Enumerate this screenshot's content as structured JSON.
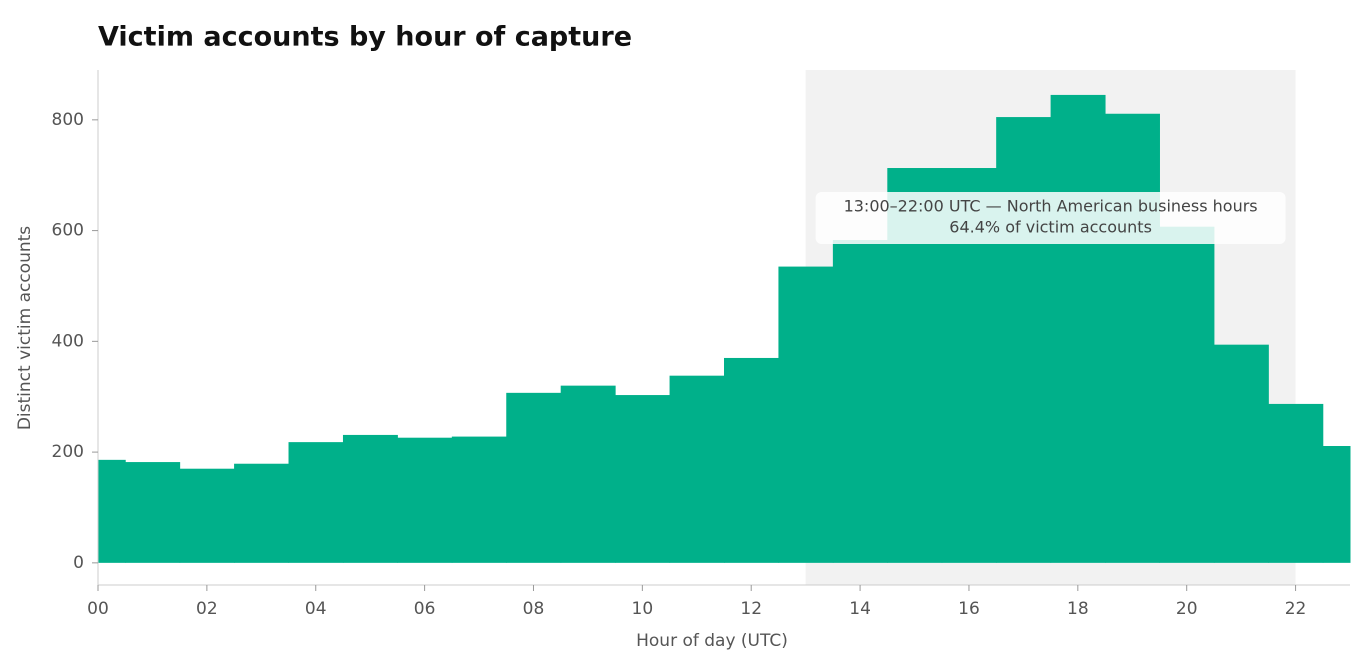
{
  "chart_data": {
    "type": "step",
    "title": "Victim accounts by hour of capture",
    "x_label": "Hour of day (UTC)",
    "y_label": "Distinct victim accounts",
    "x": [
      0,
      1,
      2,
      3,
      4,
      5,
      6,
      7,
      8,
      9,
      10,
      11,
      12,
      13,
      14,
      15,
      16,
      17,
      18,
      19,
      20,
      21,
      22,
      23
    ],
    "values": [
      186,
      182,
      170,
      179,
      218,
      231,
      226,
      228,
      307,
      320,
      303,
      338,
      370,
      535,
      583,
      713,
      713,
      805,
      845,
      811,
      607,
      394,
      287,
      211
    ],
    "color": "#00b08a",
    "xlim": [
      0,
      23
    ],
    "ylim": [
      -40,
      890
    ],
    "xticks": [
      {
        "value": 0,
        "label": "00"
      },
      {
        "value": 2,
        "label": "02"
      },
      {
        "value": 4,
        "label": "04"
      },
      {
        "value": 6,
        "label": "06"
      },
      {
        "value": 8,
        "label": "08"
      },
      {
        "value": 10,
        "label": "10"
      },
      {
        "value": 12,
        "label": "12"
      },
      {
        "value": 14,
        "label": "14"
      },
      {
        "value": 16,
        "label": "16"
      },
      {
        "value": 18,
        "label": "18"
      },
      {
        "value": 20,
        "label": "20"
      },
      {
        "value": 22,
        "label": "22"
      }
    ],
    "yticks": [
      0,
      200,
      400,
      600,
      800
    ],
    "highlight": {
      "start": 13,
      "end": 22,
      "color": "#f2f2f2",
      "annotation": [
        "13:00–22:00 UTC — North American business hours",
        "64.4% of victim accounts"
      ]
    }
  }
}
